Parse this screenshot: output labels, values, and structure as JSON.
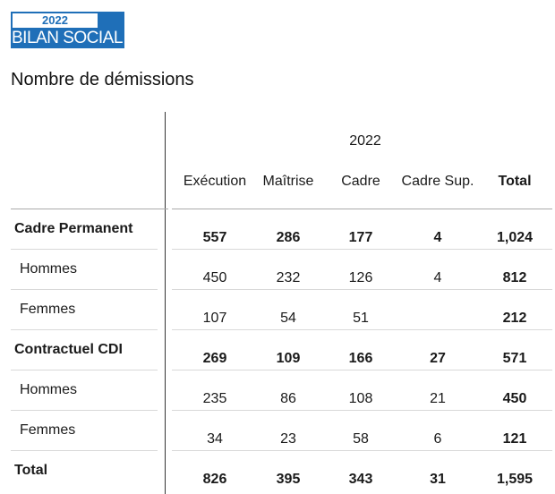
{
  "logo": {
    "year": "2022",
    "text": "BILAN SOCIAL"
  },
  "title": "Nombre de démissions",
  "table": {
    "year": "2022",
    "columns": [
      "Exécution",
      "Maîtrise",
      "Cadre",
      "Cadre Sup.",
      "Total"
    ],
    "rows": [
      {
        "label": "Cadre Permanent",
        "bold": true,
        "values": [
          "557",
          "286",
          "177",
          "4",
          "1,024"
        ]
      },
      {
        "label": "Hommes",
        "bold": false,
        "values": [
          "450",
          "232",
          "126",
          "4",
          "812"
        ]
      },
      {
        "label": "Femmes",
        "bold": false,
        "values": [
          "107",
          "54",
          "51",
          "",
          "212"
        ]
      },
      {
        "label": "Contractuel CDI",
        "bold": true,
        "values": [
          "269",
          "109",
          "166",
          "27",
          "571"
        ]
      },
      {
        "label": "Hommes",
        "bold": false,
        "values": [
          "235",
          "86",
          "108",
          "21",
          "450"
        ]
      },
      {
        "label": "Femmes",
        "bold": false,
        "values": [
          "34",
          "23",
          "58",
          "6",
          "121"
        ]
      },
      {
        "label": "Total",
        "bold": true,
        "values": [
          "826",
          "395",
          "343",
          "31",
          "1,595"
        ]
      }
    ]
  }
}
